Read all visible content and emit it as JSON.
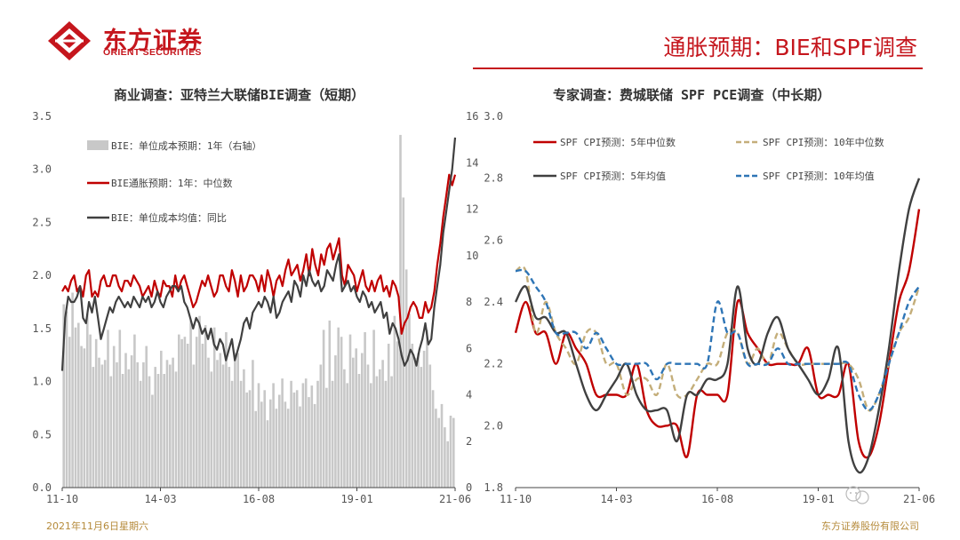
{
  "header": {
    "logo_cn": "东方证券",
    "logo_en": "ORIENT SECURITIES",
    "page_title": "通胀预期：BIE和SPF调查",
    "colors": {
      "brand": "#c5161d"
    }
  },
  "footer": {
    "date": "2021年11月6日星期六",
    "company": "东方证券股份有限公司"
  },
  "chart_data": [
    {
      "type": "line",
      "title": "商业调查：亚特兰大联储BIE调查（短期）",
      "x_ticks": [
        "11-10",
        "14-03",
        "16-08",
        "19-01",
        "21-06"
      ],
      "x_range": [
        "2011-10",
        "2021-10"
      ],
      "ylim": [
        0.0,
        3.5
      ],
      "y_ticks": [
        "0.0",
        "0.5",
        "1.0",
        "1.5",
        "2.0",
        "2.5",
        "3.0",
        "3.5"
      ],
      "y2lim": [
        0,
        16
      ],
      "y2_ticks": [
        "0",
        "2",
        "4",
        "6",
        "8",
        "10",
        "12",
        "14",
        "16"
      ],
      "legend_position": "top-left",
      "bars": {
        "name": "BIE：单位成本预期：1年（右轴）",
        "axis": "right",
        "color": "#c8c8c8",
        "values": [
          7.9,
          7.6,
          6.5,
          8.4,
          6.9,
          7.1,
          6.1,
          6.0,
          7.5,
          6.6,
          5.2,
          6.4,
          5.6,
          5.3,
          5.5,
          6.8,
          4.8,
          6.1,
          5.4,
          6.8,
          4.9,
          5.8,
          5.1,
          5.7,
          6.6,
          5.4,
          4.6,
          5.4,
          6.1,
          4.8,
          4.0,
          5.2,
          4.9,
          5.9,
          4.9,
          5.5,
          5.3,
          5.6,
          5.0,
          6.6,
          6.4,
          6.5,
          6.2,
          7.2,
          5.3,
          6.5,
          7.4,
          6.2,
          7.0,
          5.6,
          5.0,
          6.9,
          5.5,
          5.8,
          5.3,
          6.7,
          5.2,
          4.6,
          5.8,
          5.8,
          4.6,
          5.1,
          4.1,
          4.2,
          5.5,
          3.3,
          4.5,
          3.7,
          4.2,
          2.9,
          3.8,
          4.5,
          3.4,
          4.0,
          4.7,
          3.7,
          3.4,
          4.6,
          4.1,
          4.2,
          3.5,
          4.5,
          4.7,
          3.9,
          4.4,
          3.6,
          4.6,
          5.3,
          6.8,
          4.3,
          7.2,
          4.6,
          5.7,
          6.9,
          6.5,
          5.1,
          4.5,
          6.6,
          5.6,
          6.0,
          4.9,
          5.8,
          6.7,
          5.3,
          4.5,
          6.8,
          4.8,
          5.1,
          5.5,
          4.6,
          6.2,
          4.8,
          7.4,
          6.3,
          15.2,
          12.5,
          9.4,
          7.5,
          6.2,
          5.6,
          5.8,
          5.2,
          5.9,
          6.8,
          5.3,
          4.2,
          3.4,
          3.0,
          3.6,
          2.6,
          2.0,
          3.1,
          3.0
        ]
      },
      "series": [
        {
          "name": "BIE通胀预期：1年：中位数",
          "axis": "left",
          "color": "#c00000",
          "values": [
            1.85,
            1.9,
            1.85,
            1.95,
            2.0,
            1.85,
            1.9,
            1.8,
            2.0,
            2.05,
            1.8,
            1.85,
            1.8,
            1.95,
            2.0,
            1.9,
            1.9,
            2.0,
            2.0,
            1.9,
            1.85,
            1.95,
            1.95,
            1.9,
            2.0,
            1.95,
            1.9,
            1.8,
            1.85,
            1.9,
            1.8,
            1.95,
            1.85,
            1.8,
            1.95,
            1.9,
            1.9,
            1.8,
            2.0,
            1.85,
            1.95,
            2.0,
            1.9,
            1.8,
            1.7,
            1.75,
            1.85,
            1.95,
            1.9,
            2.0,
            1.9,
            1.8,
            1.85,
            2.0,
            2.0,
            1.9,
            1.85,
            2.05,
            1.95,
            1.8,
            2.0,
            1.85,
            1.9,
            2.0,
            2.0,
            1.95,
            1.85,
            2.0,
            1.85,
            2.05,
            1.95,
            1.8,
            1.95,
            2.0,
            1.9,
            2.05,
            2.15,
            2.0,
            2.05,
            2.1,
            1.95,
            2.05,
            2.2,
            2.0,
            2.25,
            2.1,
            2.0,
            2.2,
            2.1,
            2.25,
            2.3,
            2.15,
            2.25,
            2.35,
            2.0,
            1.9,
            2.1,
            2.05,
            2.0,
            1.85,
            1.95,
            2.05,
            1.9,
            1.85,
            1.95,
            1.85,
            1.95,
            2.0,
            1.85,
            1.9,
            1.8,
            1.95,
            1.9,
            1.8,
            1.45,
            1.55,
            1.6,
            1.7,
            1.75,
            1.7,
            1.6,
            1.6,
            1.75,
            1.65,
            1.7,
            1.85,
            2.1,
            2.3,
            2.55,
            2.75,
            2.95,
            2.85,
            2.95
          ]
        },
        {
          "name": "BIE：单位成本均值：同比",
          "axis": "left",
          "color": "#404040",
          "values": [
            1.1,
            1.6,
            1.8,
            1.75,
            1.75,
            1.8,
            1.9,
            1.6,
            1.55,
            1.75,
            1.65,
            1.8,
            1.6,
            1.4,
            1.5,
            1.6,
            1.7,
            1.65,
            1.75,
            1.8,
            1.75,
            1.7,
            1.75,
            1.7,
            1.8,
            1.75,
            1.7,
            1.8,
            1.75,
            1.8,
            1.7,
            1.75,
            1.85,
            1.75,
            1.7,
            1.8,
            1.85,
            1.9,
            1.9,
            1.85,
            1.9,
            1.75,
            1.7,
            1.6,
            1.5,
            1.6,
            1.55,
            1.45,
            1.5,
            1.4,
            1.5,
            1.35,
            1.3,
            1.4,
            1.35,
            1.2,
            1.3,
            1.4,
            1.2,
            1.3,
            1.4,
            1.55,
            1.6,
            1.5,
            1.65,
            1.7,
            1.75,
            1.7,
            1.8,
            1.75,
            1.65,
            1.8,
            1.6,
            1.65,
            1.75,
            1.8,
            1.85,
            1.75,
            1.95,
            1.9,
            1.8,
            2.0,
            1.9,
            2.05,
            1.95,
            1.9,
            1.95,
            1.85,
            1.9,
            2.05,
            2.0,
            1.95,
            2.1,
            2.2,
            1.85,
            1.9,
            1.95,
            1.85,
            1.9,
            1.8,
            1.75,
            1.85,
            1.8,
            1.7,
            1.75,
            1.65,
            1.7,
            1.75,
            1.6,
            1.65,
            1.45,
            1.55,
            1.5,
            1.4,
            1.25,
            1.15,
            1.2,
            1.3,
            1.25,
            1.15,
            1.3,
            1.4,
            1.55,
            1.35,
            1.4,
            1.7,
            1.9,
            2.1,
            2.4,
            2.6,
            2.8,
            3.0,
            3.3
          ]
        }
      ]
    },
    {
      "type": "line",
      "title": "专家调查：费城联储 SPF PCE调查（中长期）",
      "x_ticks": [
        "11-10",
        "14-03",
        "16-08",
        "19-01",
        "21-06"
      ],
      "x_range": [
        "2011-10",
        "2021-10"
      ],
      "ylim": [
        1.8,
        3.0
      ],
      "y_ticks": [
        "1.8",
        "2.0",
        "2.2",
        "2.4",
        "2.6",
        "2.8",
        "3.0"
      ],
      "legend_position": "top",
      "series": [
        {
          "name": "SPF CPI预测：5年中位数",
          "style": "solid",
          "color": "#c00000",
          "x": [
            2011.75,
            2012.0,
            2012.25,
            2012.5,
            2012.75,
            2013.0,
            2013.25,
            2013.5,
            2013.75,
            2014.0,
            2014.25,
            2014.5,
            2014.75,
            2015.0,
            2015.25,
            2015.5,
            2015.75,
            2016.0,
            2016.25,
            2016.5,
            2016.75,
            2017.0,
            2017.25,
            2017.5,
            2017.75,
            2018.0,
            2018.25,
            2018.5,
            2018.75,
            2019.0,
            2019.25,
            2019.5,
            2019.75,
            2020.0,
            2020.25,
            2020.5,
            2020.75,
            2021.0,
            2021.25,
            2021.5,
            2021.75
          ],
          "values": [
            2.3,
            2.4,
            2.3,
            2.3,
            2.2,
            2.3,
            2.25,
            2.2,
            2.1,
            2.1,
            2.1,
            2.1,
            2.2,
            2.05,
            2.0,
            2.0,
            2.0,
            1.9,
            2.1,
            2.1,
            2.1,
            2.1,
            2.4,
            2.3,
            2.25,
            2.2,
            2.2,
            2.2,
            2.2,
            2.25,
            2.1,
            2.1,
            2.1,
            2.2,
            1.95,
            1.9,
            2.0,
            2.2,
            2.4,
            2.5,
            2.7
          ]
        },
        {
          "name": "SPF CPI预测：10年中位数",
          "style": "dashed",
          "color": "#c4ae7a",
          "x": [
            2011.75,
            2012.0,
            2012.25,
            2012.5,
            2012.75,
            2013.0,
            2013.25,
            2013.5,
            2013.75,
            2014.0,
            2014.25,
            2014.5,
            2014.75,
            2015.0,
            2015.25,
            2015.5,
            2015.75,
            2016.0,
            2016.25,
            2016.5,
            2016.75,
            2017.0,
            2017.25,
            2017.5,
            2017.75,
            2018.0,
            2018.25,
            2018.5,
            2018.75,
            2019.0,
            2019.25,
            2019.5,
            2019.75,
            2020.0,
            2020.25,
            2020.5,
            2020.75,
            2021.0,
            2021.25,
            2021.5,
            2021.75
          ],
          "values": [
            2.5,
            2.5,
            2.3,
            2.4,
            2.3,
            2.25,
            2.2,
            2.3,
            2.3,
            2.2,
            2.2,
            2.1,
            2.15,
            2.15,
            2.1,
            2.2,
            2.1,
            2.1,
            2.15,
            2.2,
            2.2,
            2.3,
            2.3,
            2.2,
            2.25,
            2.2,
            2.3,
            2.25,
            2.2,
            2.2,
            2.2,
            2.2,
            2.2,
            2.2,
            2.15,
            2.05,
            2.1,
            2.2,
            2.3,
            2.35,
            2.45
          ]
        },
        {
          "name": "SPF CPI预测：5年均值",
          "style": "solid",
          "color": "#404040",
          "x": [
            2011.75,
            2012.0,
            2012.25,
            2012.5,
            2012.75,
            2013.0,
            2013.25,
            2013.5,
            2013.75,
            2014.0,
            2014.25,
            2014.5,
            2014.75,
            2015.0,
            2015.25,
            2015.5,
            2015.75,
            2016.0,
            2016.25,
            2016.5,
            2016.75,
            2017.0,
            2017.25,
            2017.5,
            2017.75,
            2018.0,
            2018.25,
            2018.5,
            2018.75,
            2019.0,
            2019.25,
            2019.5,
            2019.75,
            2020.0,
            2020.25,
            2020.5,
            2020.75,
            2021.0,
            2021.25,
            2021.5,
            2021.75
          ],
          "values": [
            2.4,
            2.45,
            2.35,
            2.35,
            2.3,
            2.3,
            2.2,
            2.1,
            2.05,
            2.1,
            2.15,
            2.2,
            2.1,
            2.05,
            2.05,
            2.05,
            1.95,
            2.1,
            2.1,
            2.15,
            2.15,
            2.2,
            2.45,
            2.25,
            2.2,
            2.3,
            2.35,
            2.25,
            2.2,
            2.15,
            2.1,
            2.15,
            2.25,
            1.95,
            1.85,
            1.9,
            2.05,
            2.25,
            2.5,
            2.7,
            2.8
          ]
        },
        {
          "name": "SPF CPI预测：10年均值",
          "style": "dashed",
          "color": "#2e75b6",
          "x": [
            2011.75,
            2012.0,
            2012.25,
            2012.5,
            2012.75,
            2013.0,
            2013.25,
            2013.5,
            2013.75,
            2014.0,
            2014.25,
            2014.5,
            2014.75,
            2015.0,
            2015.25,
            2015.5,
            2015.75,
            2016.0,
            2016.25,
            2016.5,
            2016.75,
            2017.0,
            2017.25,
            2017.5,
            2017.75,
            2018.0,
            2018.25,
            2018.5,
            2018.75,
            2019.0,
            2019.25,
            2019.5,
            2019.75,
            2020.0,
            2020.25,
            2020.5,
            2020.75,
            2021.0,
            2021.25,
            2021.5,
            2021.75
          ],
          "values": [
            2.5,
            2.5,
            2.45,
            2.4,
            2.3,
            2.3,
            2.3,
            2.25,
            2.3,
            2.25,
            2.2,
            2.2,
            2.2,
            2.2,
            2.15,
            2.2,
            2.2,
            2.2,
            2.2,
            2.2,
            2.4,
            2.3,
            2.3,
            2.2,
            2.2,
            2.2,
            2.25,
            2.2,
            2.2,
            2.2,
            2.2,
            2.2,
            2.2,
            2.2,
            2.1,
            2.05,
            2.1,
            2.2,
            2.3,
            2.4,
            2.45
          ]
        }
      ]
    }
  ]
}
